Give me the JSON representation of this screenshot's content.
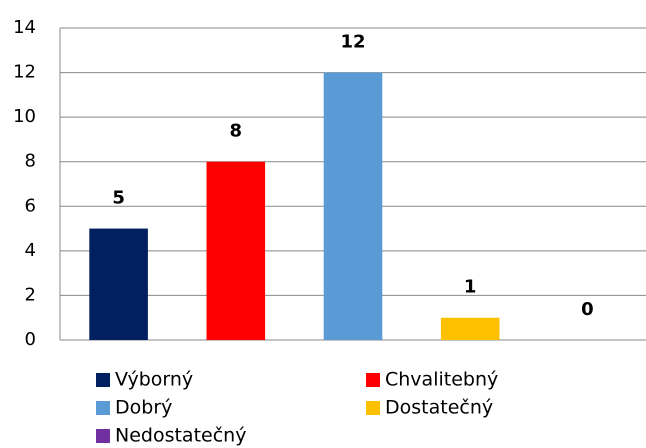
{
  "chart_data": {
    "type": "bar",
    "categories": [
      "Výborný",
      "Chvalitebný",
      "Dobrý",
      "Dostatečný",
      "Nedostatečný"
    ],
    "values": [
      5,
      8,
      12,
      1,
      0
    ],
    "colors": [
      "#002060",
      "#ff0000",
      "#5b9bd5",
      "#ffc000",
      "#7030a0"
    ],
    "ylim": [
      0,
      14
    ],
    "yticks": [
      0,
      2,
      4,
      6,
      8,
      10,
      12,
      14
    ],
    "grid": true,
    "legend": "bottom"
  }
}
